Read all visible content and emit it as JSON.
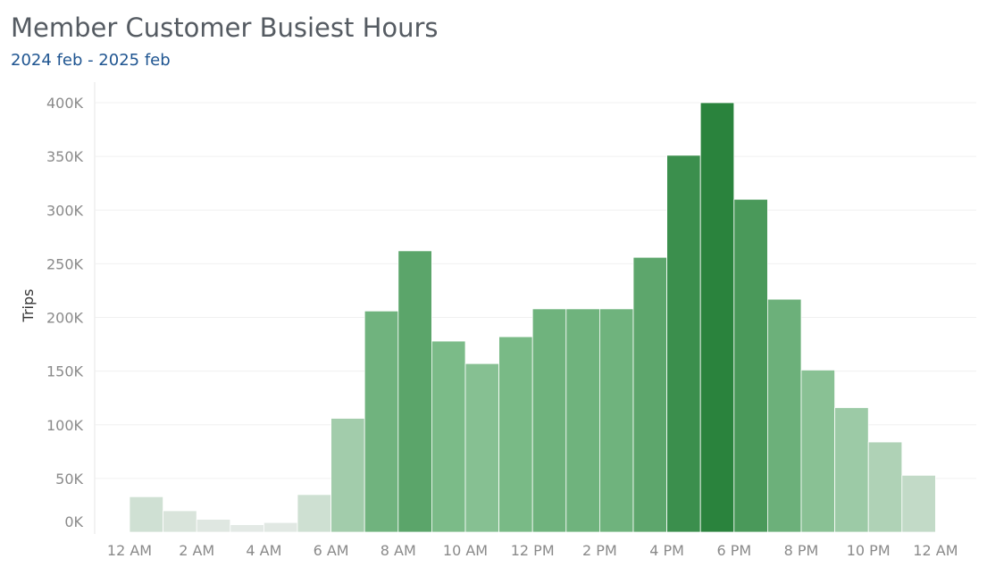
{
  "chart_data": {
    "type": "bar",
    "title": "Member Customer Busiest Hours",
    "subtitle": "2024 feb - 2025 feb",
    "xlabel": "",
    "ylabel": "Trips",
    "ylim": [
      0,
      400000
    ],
    "y_ticks": [
      {
        "value": 0,
        "label": "0K"
      },
      {
        "value": 50000,
        "label": "50K"
      },
      {
        "value": 100000,
        "label": "100K"
      },
      {
        "value": 150000,
        "label": "150K"
      },
      {
        "value": 200000,
        "label": "200K"
      },
      {
        "value": 250000,
        "label": "250K"
      },
      {
        "value": 300000,
        "label": "300K"
      },
      {
        "value": 350000,
        "label": "350K"
      },
      {
        "value": 400000,
        "label": "400K"
      }
    ],
    "x_tick_labels": [
      "12 AM",
      "2 AM",
      "4 AM",
      "6 AM",
      "8 AM",
      "10 AM",
      "12 PM",
      "2 PM",
      "4 PM",
      "6 PM",
      "8 PM",
      "10 PM",
      "12 AM"
    ],
    "categories": [
      "0",
      "1",
      "2",
      "3",
      "4",
      "5",
      "6",
      "7",
      "8",
      "9",
      "10",
      "11",
      "12",
      "13",
      "14",
      "15",
      "16",
      "17",
      "18",
      "19",
      "20",
      "21",
      "22",
      "23"
    ],
    "values": [
      33000,
      20000,
      12000,
      7000,
      9000,
      35000,
      106000,
      206000,
      262000,
      178000,
      157000,
      182000,
      208000,
      208000,
      208000,
      256000,
      351000,
      400000,
      310000,
      217000,
      151000,
      116000,
      84000,
      53000
    ],
    "grid": true,
    "legend": "none",
    "colors": {
      "low": "#e8ebe8",
      "high": "#2a833d"
    }
  }
}
